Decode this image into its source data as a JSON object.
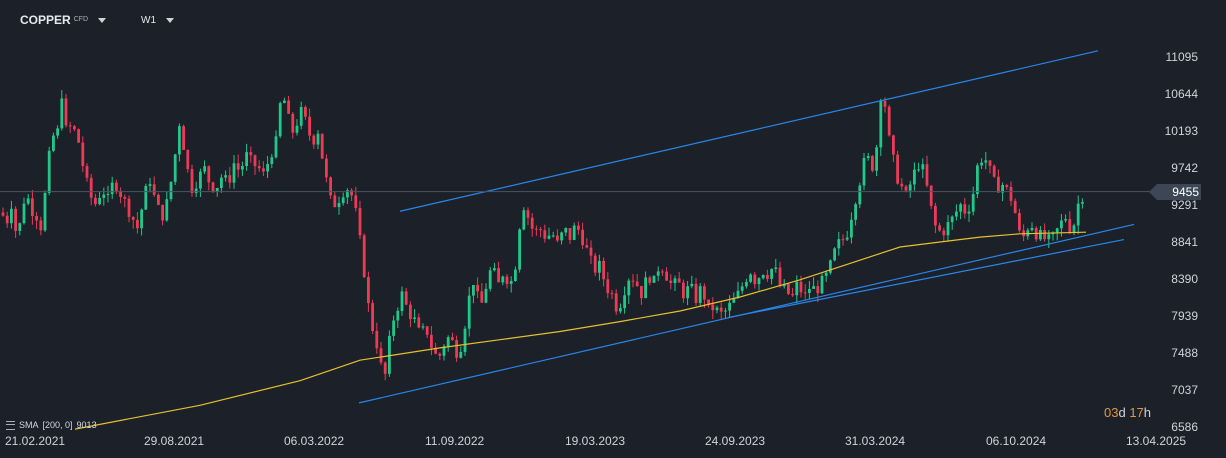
{
  "header": {
    "symbol": "COPPER",
    "symbol_suffix": "CFD",
    "timeframe": "W1"
  },
  "indicator": {
    "name": "SMA",
    "params": "[200, 0]",
    "value": "9013"
  },
  "countdown": {
    "days": "03",
    "days_unit": "d",
    "hours": "17",
    "hours_unit": "h"
  },
  "colors": {
    "background": "#1b2029",
    "up": "#22c88a",
    "down": "#ec3b54",
    "sma": "#e6c02e",
    "trendline": "#2a86e8",
    "price_line": "#4a5566"
  },
  "chart_data": {
    "type": "candlestick",
    "title": "",
    "xlabel": "",
    "ylabel": "",
    "y_ticks": [
      11095,
      10644,
      10193,
      9742,
      9455,
      9291,
      8841,
      8390,
      7939,
      7488,
      7037,
      6586
    ],
    "x_ticks": [
      "21.02.2021",
      "29.08.2021",
      "06.03.2022",
      "11.09.2022",
      "19.03.2023",
      "24.09.2023",
      "31.03.2024",
      "06.10.2024",
      "13.04.2025"
    ],
    "ylim": [
      6540,
      11300
    ],
    "current_price": 9455,
    "series": [
      {
        "type": "candlestick",
        "close_path": [
          [
            0,
            9200
          ],
          [
            8,
            9100
          ],
          [
            12,
            9350
          ],
          [
            16,
            8950
          ],
          [
            20,
            9050
          ],
          [
            26,
            9500
          ],
          [
            30,
            9250
          ],
          [
            36,
            9200
          ],
          [
            40,
            8960
          ],
          [
            46,
            9500
          ],
          [
            52,
            10200
          ],
          [
            56,
            10000
          ],
          [
            62,
            10680
          ],
          [
            66,
            10200
          ],
          [
            72,
            10250
          ],
          [
            78,
            10100
          ],
          [
            84,
            9700
          ],
          [
            90,
            9400
          ],
          [
            96,
            9300
          ],
          [
            102,
            9500
          ],
          [
            108,
            9350
          ],
          [
            114,
            9600
          ],
          [
            120,
            9450
          ],
          [
            126,
            9300
          ],
          [
            132,
            9150
          ],
          [
            138,
            9000
          ],
          [
            144,
            9400
          ],
          [
            150,
            9600
          ],
          [
            156,
            9300
          ],
          [
            162,
            9150
          ],
          [
            168,
            9350
          ],
          [
            174,
            9800
          ],
          [
            180,
            10350
          ],
          [
            186,
            9800
          ],
          [
            192,
            9500
          ],
          [
            198,
            9600
          ],
          [
            204,
            9750
          ],
          [
            210,
            9550
          ],
          [
            216,
            9500
          ],
          [
            222,
            9650
          ],
          [
            228,
            9550
          ],
          [
            234,
            9800
          ],
          [
            240,
            9700
          ],
          [
            246,
            9900
          ],
          [
            252,
            9800
          ],
          [
            258,
            9750
          ],
          [
            264,
            9650
          ],
          [
            270,
            9900
          ],
          [
            276,
            10050
          ],
          [
            282,
            10700
          ],
          [
            288,
            10350
          ],
          [
            294,
            10150
          ],
          [
            300,
            10450
          ],
          [
            306,
            10300
          ],
          [
            312,
            10050
          ],
          [
            318,
            10200
          ],
          [
            324,
            9750
          ],
          [
            330,
            9350
          ],
          [
            336,
            9300
          ],
          [
            342,
            9450
          ],
          [
            348,
            9500
          ],
          [
            354,
            9350
          ],
          [
            358,
            9000
          ],
          [
            362,
            8700
          ],
          [
            366,
            8300
          ],
          [
            370,
            7900
          ],
          [
            376,
            7650
          ],
          [
            380,
            7400
          ],
          [
            384,
            7100
          ],
          [
            388,
            7500
          ],
          [
            392,
            7850
          ],
          [
            396,
            8000
          ],
          [
            402,
            8200
          ],
          [
            408,
            8000
          ],
          [
            414,
            7900
          ],
          [
            420,
            7700
          ],
          [
            426,
            7800
          ],
          [
            432,
            7550
          ],
          [
            438,
            7400
          ],
          [
            444,
            7600
          ],
          [
            450,
            7700
          ],
          [
            456,
            7500
          ],
          [
            462,
            7600
          ],
          [
            468,
            8100
          ],
          [
            474,
            8400
          ],
          [
            480,
            8000
          ],
          [
            486,
            8300
          ],
          [
            492,
            8550
          ],
          [
            498,
            8300
          ],
          [
            504,
            8500
          ],
          [
            510,
            8300
          ],
          [
            516,
            8600
          ],
          [
            522,
            9350
          ],
          [
            528,
            9150
          ],
          [
            534,
            8950
          ],
          [
            540,
            9000
          ],
          [
            546,
            8900
          ],
          [
            552,
            8950
          ],
          [
            558,
            8800
          ],
          [
            564,
            9000
          ],
          [
            570,
            8900
          ],
          [
            576,
            9050
          ],
          [
            582,
            8900
          ],
          [
            588,
            8700
          ],
          [
            594,
            8500
          ],
          [
            600,
            8550
          ],
          [
            606,
            8300
          ],
          [
            612,
            8200
          ],
          [
            618,
            8000
          ],
          [
            624,
            8250
          ],
          [
            630,
            8450
          ],
          [
            636,
            8350
          ],
          [
            642,
            8200
          ],
          [
            648,
            8450
          ],
          [
            654,
            8350
          ],
          [
            660,
            8600
          ],
          [
            666,
            8450
          ],
          [
            672,
            8300
          ],
          [
            678,
            8350
          ],
          [
            684,
            8200
          ],
          [
            690,
            8300
          ],
          [
            696,
            8150
          ],
          [
            702,
            8300
          ],
          [
            708,
            8000
          ],
          [
            714,
            8050
          ],
          [
            720,
            7950
          ],
          [
            726,
            8000
          ],
          [
            732,
            8100
          ],
          [
            738,
            8200
          ],
          [
            744,
            8350
          ],
          [
            750,
            8500
          ],
          [
            756,
            8350
          ],
          [
            762,
            8500
          ],
          [
            768,
            8450
          ],
          [
            774,
            8550
          ],
          [
            780,
            8300
          ],
          [
            786,
            8250
          ],
          [
            792,
            8150
          ],
          [
            798,
            8350
          ],
          [
            804,
            8150
          ],
          [
            810,
            8300
          ],
          [
            816,
            8250
          ],
          [
            822,
            8350
          ],
          [
            828,
            8450
          ],
          [
            834,
            8700
          ],
          [
            840,
            8850
          ],
          [
            846,
            8900
          ],
          [
            852,
            9200
          ],
          [
            858,
            9500
          ],
          [
            862,
            9700
          ],
          [
            866,
            9900
          ],
          [
            870,
            9800
          ],
          [
            874,
            9750
          ],
          [
            878,
            10150
          ],
          [
            882,
            10850
          ],
          [
            886,
            10400
          ],
          [
            890,
            10000
          ],
          [
            894,
            9800
          ],
          [
            898,
            9600
          ],
          [
            902,
            9500
          ],
          [
            906,
            9400
          ],
          [
            912,
            9600
          ],
          [
            918,
            9800
          ],
          [
            924,
            9700
          ],
          [
            930,
            9300
          ],
          [
            936,
            9000
          ],
          [
            942,
            8950
          ],
          [
            948,
            9050
          ],
          [
            954,
            9150
          ],
          [
            960,
            9300
          ],
          [
            966,
            9200
          ],
          [
            972,
            9350
          ],
          [
            978,
            9800
          ],
          [
            984,
            9900
          ],
          [
            990,
            9700
          ],
          [
            996,
            9500
          ],
          [
            1002,
            9550
          ],
          [
            1008,
            9450
          ],
          [
            1014,
            9300
          ],
          [
            1018,
            8950
          ],
          [
            1024,
            8900
          ],
          [
            1030,
            9100
          ],
          [
            1036,
            8950
          ],
          [
            1042,
            8900
          ],
          [
            1048,
            8850
          ],
          [
            1054,
            8900
          ],
          [
            1060,
            9050
          ],
          [
            1066,
            9150
          ],
          [
            1072,
            8950
          ],
          [
            1078,
            9300
          ],
          [
            1082,
            9400
          ],
          [
            1086,
            9455
          ]
        ]
      },
      {
        "type": "sma",
        "name": "SMA",
        "points": [
          [
            75,
            6560
          ],
          [
            200,
            6850
          ],
          [
            300,
            7150
          ],
          [
            360,
            7400
          ],
          [
            440,
            7550
          ],
          [
            500,
            7650
          ],
          [
            560,
            7750
          ],
          [
            620,
            7870
          ],
          [
            680,
            8000
          ],
          [
            740,
            8170
          ],
          [
            800,
            8380
          ],
          [
            850,
            8580
          ],
          [
            900,
            8780
          ],
          [
            940,
            8840
          ],
          [
            980,
            8900
          ],
          [
            1020,
            8940
          ],
          [
            1086,
            8960
          ]
        ]
      },
      {
        "type": "trendlines",
        "lines": [
          [
            [
              400,
              9215
            ],
            [
              1098,
              11170
            ]
          ],
          [
            [
              359,
              6880
            ],
            [
              1134,
              9055
            ]
          ],
          [
            [
              728,
              7920
            ],
            [
              1124,
              8870
            ]
          ]
        ]
      }
    ]
  }
}
